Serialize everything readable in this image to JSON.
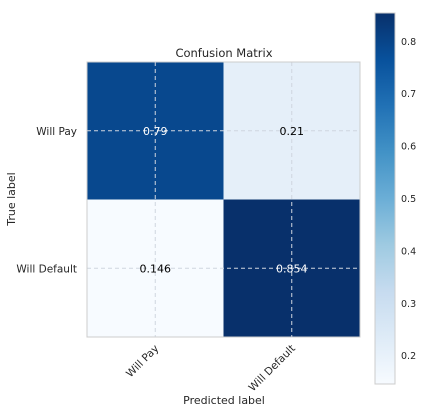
{
  "chart_data": {
    "type": "heatmap",
    "title": "Confusion Matrix",
    "xlabel": "Predicted label",
    "ylabel": "True label",
    "x_categories": [
      "Will Pay",
      "Will Default"
    ],
    "y_categories": [
      "Will Pay",
      "Will Default"
    ],
    "cells": [
      [
        {
          "label": "0.79",
          "value": 0.79
        },
        {
          "label": "0.21",
          "value": 0.21
        }
      ],
      [
        {
          "label": "0.146",
          "value": 0.146
        },
        {
          "label": "0.854",
          "value": 0.854
        }
      ]
    ],
    "colormap": "Blues",
    "colorbar": {
      "range": [
        0.146,
        0.854
      ],
      "ticks": [
        "0.2",
        "0.3",
        "0.4",
        "0.5",
        "0.6",
        "0.7",
        "0.8"
      ],
      "tick_values": [
        0.2,
        0.3,
        0.4,
        0.5,
        0.6,
        0.7,
        0.8
      ]
    },
    "grid": true
  }
}
